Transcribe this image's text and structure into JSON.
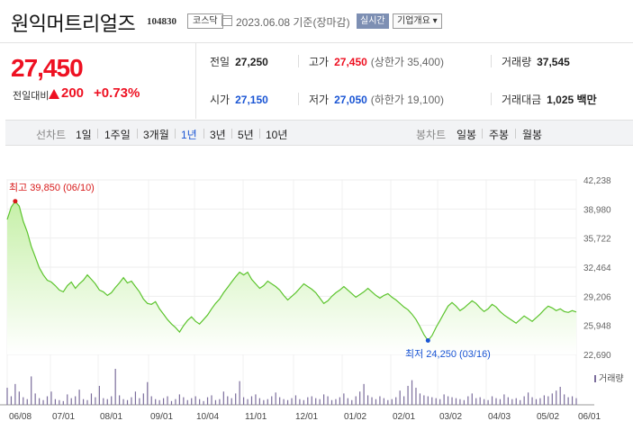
{
  "header": {
    "name": "원익머트리얼즈",
    "code": "104830",
    "market": "코스닥",
    "date": "2023.06.08 기준(장마감)",
    "realtime": "실시간",
    "corp_info": "기업개요 ▾"
  },
  "price": {
    "current": "27,450",
    "diff_label": "전일대비",
    "diff": "200",
    "diff_pct": "+0.73%"
  },
  "stats": {
    "prev_label": "전일",
    "prev": "27,250",
    "high_label": "고가",
    "high": "27,450",
    "upper_limit": "(상한가 35,400)",
    "volume_label": "거래량",
    "volume": "37,545",
    "open_label": "시가",
    "open": "27,150",
    "low_label": "저가",
    "low": "27,050",
    "lower_limit": "(하한가 19,100)",
    "amount_label": "거래대금",
    "amount": "1,025 백만"
  },
  "toolbar": {
    "line_label": "선차트",
    "line_periods": [
      "1일",
      "1주일",
      "3개월",
      "1년",
      "3년",
      "5년",
      "10년"
    ],
    "selected": "1년",
    "candle_label": "봉차트",
    "candle_periods": [
      "일봉",
      "주봉",
      "월봉"
    ]
  },
  "chart_data": {
    "type": "area",
    "y_ticks": [
      "42,238",
      "38,980",
      "35,722",
      "32,464",
      "29,206",
      "25,948",
      "22,690"
    ],
    "ylim": [
      22690,
      42238
    ],
    "x_ticks": [
      "06/08",
      "07/01",
      "08/01",
      "09/01",
      "10/04",
      "11/01",
      "12/01",
      "01/02",
      "02/01",
      "03/02",
      "04/03",
      "05/02",
      "06/01"
    ],
    "high_annotation": "최고 39,850 (06/10)",
    "low_annotation": "최저 24,250 (03/16)",
    "volume_label": "거래량",
    "colors": {
      "line": "#5cc42d",
      "fill_top": "#c6f0a8",
      "fill_bottom": "#ffffff",
      "volume": "#7b6d9c",
      "high": "#d81b1b",
      "low": "#1a55d4"
    },
    "values": [
      37800,
      39200,
      39850,
      39300,
      37600,
      36400,
      34800,
      33600,
      32400,
      31600,
      31000,
      30800,
      30400,
      29900,
      29700,
      30400,
      30800,
      30100,
      30600,
      31000,
      31600,
      31100,
      30600,
      29900,
      29700,
      29300,
      29600,
      30200,
      30700,
      31300,
      30700,
      30900,
      30300,
      29700,
      28900,
      28400,
      28300,
      28600,
      27800,
      27200,
      26600,
      26100,
      25700,
      25200,
      25900,
      26500,
      26900,
      26400,
      26100,
      26600,
      27100,
      27800,
      28400,
      28900,
      29600,
      30200,
      30800,
      31400,
      31900,
      31600,
      31900,
      31100,
      30600,
      30100,
      30400,
      30900,
      30600,
      30300,
      29900,
      29300,
      28800,
      29200,
      29600,
      30100,
      30600,
      30300,
      30000,
      29600,
      29000,
      28400,
      28700,
      29200,
      29600,
      29900,
      30300,
      29900,
      29500,
      29100,
      29400,
      29700,
      30100,
      29700,
      29300,
      29000,
      29300,
      29500,
      29100,
      28800,
      28400,
      28000,
      27700,
      27200,
      26600,
      25800,
      24900,
      24250,
      24800,
      25700,
      26500,
      27300,
      28100,
      28500,
      28100,
      27600,
      27900,
      28300,
      28700,
      28400,
      27900,
      27500,
      27800,
      28300,
      28000,
      27500,
      27100,
      26800,
      26500,
      26200,
      26600,
      27000,
      26700,
      26400,
      26800,
      27200,
      27700,
      28100,
      27900,
      27600,
      27800,
      27500,
      27400,
      27600,
      27450
    ],
    "volume": [
      18,
      9,
      22,
      14,
      8,
      6,
      30,
      12,
      7,
      5,
      9,
      14,
      6,
      5,
      4,
      11,
      7,
      9,
      16,
      6,
      5,
      12,
      8,
      20,
      7,
      6,
      9,
      38,
      10,
      6,
      5,
      8,
      14,
      7,
      12,
      24,
      9,
      6,
      5,
      7,
      9,
      4,
      6,
      11,
      8,
      5,
      7,
      9,
      6,
      4,
      8,
      10,
      5,
      6,
      14,
      9,
      7,
      12,
      25,
      8,
      6,
      9,
      11,
      7,
      5,
      6,
      9,
      13,
      8,
      6,
      5,
      7,
      10,
      6,
      5,
      8,
      9,
      7,
      6,
      11,
      9,
      5,
      6,
      8,
      12,
      7,
      5,
      9,
      14,
      22,
      10,
      8,
      6,
      9,
      7,
      5,
      6,
      8,
      15,
      9,
      20,
      26,
      18,
      12,
      10,
      9,
      8,
      7,
      6,
      11,
      9,
      8,
      7,
      6,
      5,
      9,
      12,
      7,
      8,
      6,
      5,
      9,
      7,
      6,
      11,
      8,
      6,
      7,
      5,
      9,
      13,
      8,
      6,
      7,
      10,
      9,
      12,
      15,
      19,
      11,
      8,
      9,
      7
    ]
  }
}
